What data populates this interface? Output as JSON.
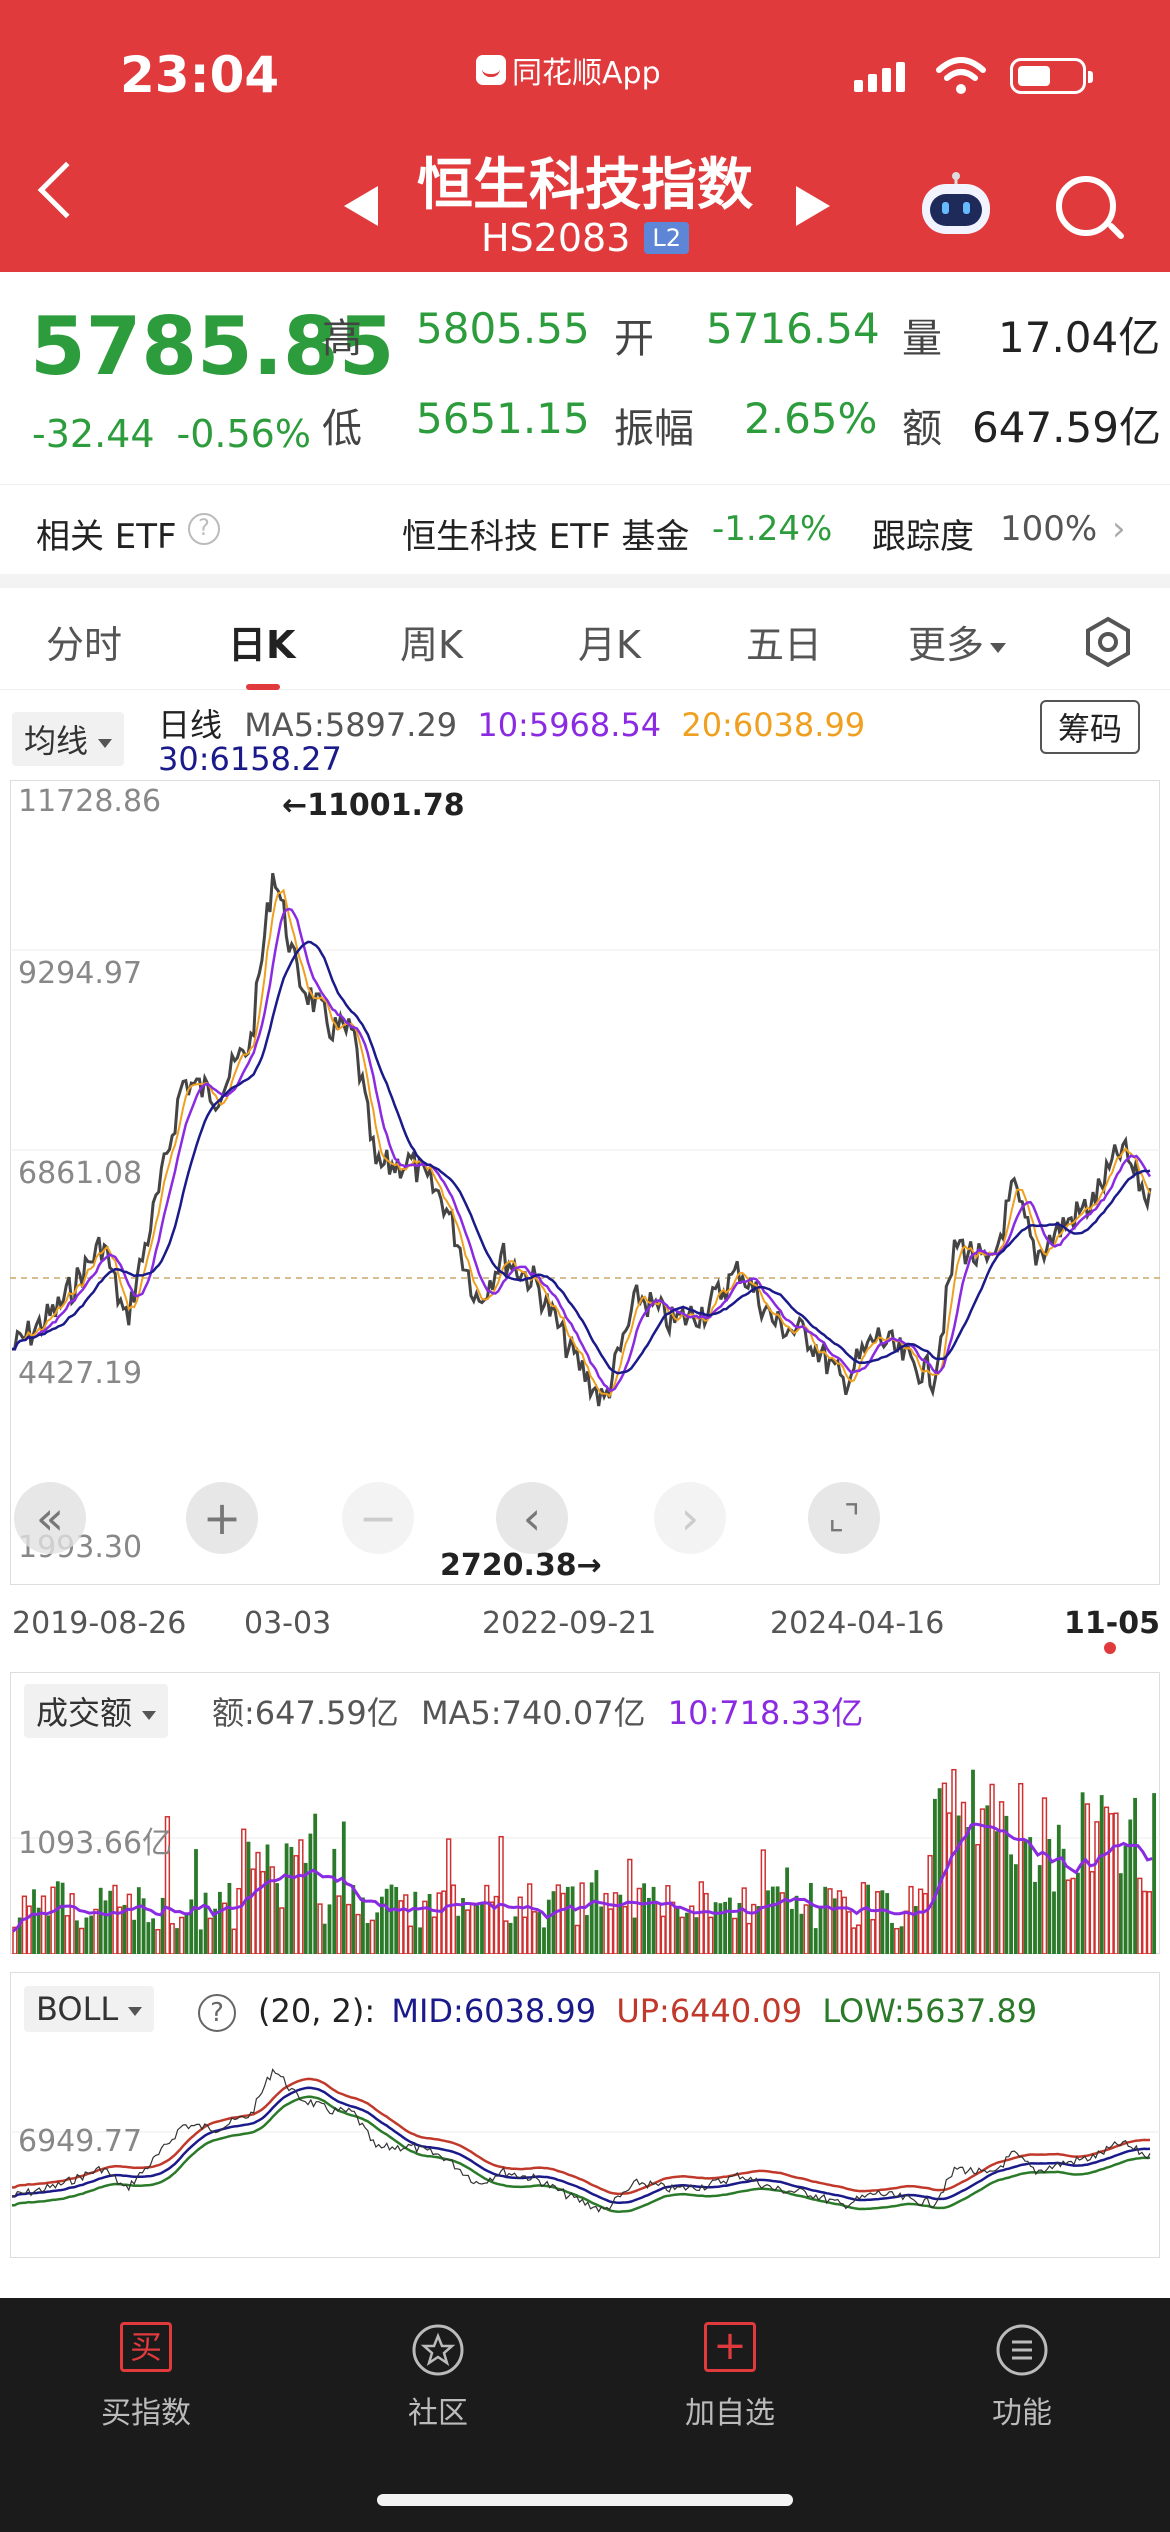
{
  "status_bar": {
    "time": "23:04",
    "app_name": "同花顺App"
  },
  "header": {
    "title": "恒生科技指数",
    "code": "HS2083",
    "level_badge": "L2"
  },
  "quote": {
    "price": "5785.85",
    "change": "-32.44",
    "change_pct": "-0.56%",
    "high_label": "高",
    "high": "5805.55",
    "open_label": "开",
    "open": "5716.54",
    "volume_label": "量",
    "volume": "17.04亿",
    "low_label": "低",
    "low": "5651.15",
    "amplitude_label": "振幅",
    "amplitude": "2.65%",
    "turnover_label": "额",
    "turnover": "647.59亿"
  },
  "etf": {
    "label": "相关 ETF",
    "name": "恒生科技 ETF 基金",
    "change": "-1.24%",
    "tracking_label": "跟踪度",
    "tracking": "100%"
  },
  "tabs": [
    "分时",
    "日K",
    "周K",
    "月K",
    "五日",
    "更多"
  ],
  "kline": {
    "indicator": "均线",
    "period": "日线",
    "ma5": "MA5:5897.29",
    "ma10": "10:5968.54",
    "ma20": "20:6038.99",
    "ma30": "30:6158.27",
    "chips_button": "筹码",
    "y_labels": [
      "11728.86",
      "9294.97",
      "6861.08",
      "4427.19",
      "1993.30"
    ],
    "max_annotation": "←11001.78",
    "min_annotation": "2720.38→",
    "dates": [
      "2019-08-26",
      "03-03",
      "2022-09-21",
      "2024-04-16",
      "11-05"
    ]
  },
  "volume_panel": {
    "indicator": "成交额",
    "amount": "额:647.59亿",
    "ma5": "MA5:740.07亿",
    "ma10": "10:718.33亿",
    "y_label": "1093.66亿"
  },
  "boll_panel": {
    "indicator": "BOLL",
    "params": "(20, 2):",
    "mid": "MID:6038.99",
    "up": "UP:6440.09",
    "low": "LOW:5637.89",
    "y_label": "6949.77"
  },
  "bottom_nav": [
    {
      "label": "买指数",
      "icon": "buy-icon"
    },
    {
      "label": "社区",
      "icon": "community-icon"
    },
    {
      "label": "加自选",
      "icon": "add-watchlist-icon"
    },
    {
      "label": "功能",
      "icon": "menu-icon"
    }
  ],
  "colors": {
    "header_red": "#e03a3c",
    "down_green": "#2c9c3c",
    "ma10_purple": "#8a2be2",
    "ma20_orange": "#f0a020",
    "ma30_navy": "#1a1a8a",
    "boll_up_red": "#c0392b"
  }
}
